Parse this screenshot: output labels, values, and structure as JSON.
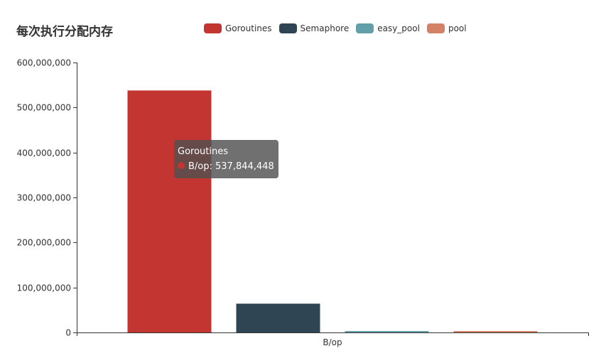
{
  "chart_data": {
    "type": "bar",
    "title": "每次执行分配内存",
    "categories": [
      "B/op"
    ],
    "ylim": [
      0,
      600000000
    ],
    "yticks": [
      0,
      100000000,
      200000000,
      300000000,
      400000000,
      500000000,
      600000000
    ],
    "ytick_labels": [
      "0",
      "100,000,000",
      "200,000,000",
      "300,000,000",
      "400,000,000",
      "500,000,000",
      "600,000,000"
    ],
    "grid": false,
    "legend_position": "top",
    "series": [
      {
        "name": "Goroutines",
        "values": [
          537844448
        ],
        "color": "#c23531"
      },
      {
        "name": "Semaphore",
        "values": [
          64000000
        ],
        "color": "#2f4554"
      },
      {
        "name": "easy_pool",
        "values": [
          2500000
        ],
        "color": "#61a0a8"
      },
      {
        "name": "pool",
        "values": [
          2500000
        ],
        "color": "#d48265"
      }
    ],
    "tooltip": {
      "series_name": "Goroutines",
      "line": "B/op: 537,844,448",
      "color": "#c23531"
    }
  }
}
